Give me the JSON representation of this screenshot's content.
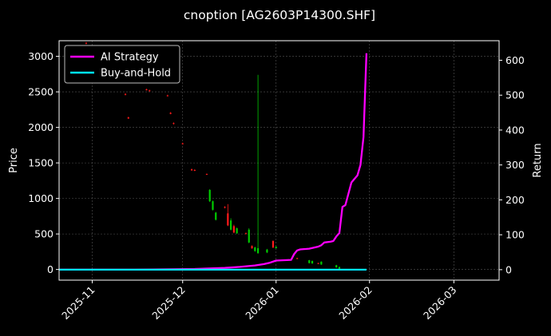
{
  "chart_data": {
    "type": "candlestick+line",
    "title": "cnoption [AG2603P14300.SHF]",
    "ylabel_left": "Price",
    "ylabel_right": "Return",
    "xlim": [
      "2025-10-21",
      "2026-03-16"
    ],
    "ylim_left": [
      -150,
      3220
    ],
    "ylim_right": [
      -30,
      656
    ],
    "x_ticks": [
      {
        "date": "2025-11-01",
        "label": "2025-11"
      },
      {
        "date": "2025-12-01",
        "label": "2025-12"
      },
      {
        "date": "2026-01-01",
        "label": "2026-01"
      },
      {
        "date": "2026-02-01",
        "label": "2026-02"
      },
      {
        "date": "2026-03-01",
        "label": "2026-03"
      }
    ],
    "y_ticks_left": [
      0,
      500,
      1000,
      1500,
      2000,
      2500,
      3000
    ],
    "y_ticks_right": [
      0,
      100,
      200,
      300,
      400,
      500,
      600
    ],
    "grid": true,
    "legend_position": "top-left",
    "colors": {
      "up": "#00cc00",
      "down": "#ff1a1a",
      "ai_strategy": "#ff00ff",
      "buy_and_hold": "#00e5ff",
      "grid": "#555555",
      "background": "#000000"
    },
    "candles": [
      {
        "date": "2025-10-30",
        "open": 3190,
        "close": 3180,
        "high": 3200,
        "low": 3170
      },
      {
        "date": "2025-11-12",
        "open": 2470,
        "close": 2460,
        "high": 2480,
        "low": 2450
      },
      {
        "date": "2025-11-13",
        "open": 2140,
        "close": 2125,
        "high": 2150,
        "low": 2120
      },
      {
        "date": "2025-11-19",
        "open": 2535,
        "close": 2525,
        "high": 2545,
        "low": 2520
      },
      {
        "date": "2025-11-20",
        "open": 2520,
        "close": 2510,
        "high": 2530,
        "low": 2505
      },
      {
        "date": "2025-11-26",
        "open": 2450,
        "close": 2440,
        "high": 2460,
        "low": 2435
      },
      {
        "date": "2025-11-27",
        "open": 2205,
        "close": 2190,
        "high": 2215,
        "low": 2185
      },
      {
        "date": "2025-11-28",
        "open": 2060,
        "close": 2050,
        "high": 2070,
        "low": 2040
      },
      {
        "date": "2025-12-01",
        "open": 1775,
        "close": 1765,
        "high": 1785,
        "low": 1760
      },
      {
        "date": "2025-12-04",
        "open": 1410,
        "close": 1395,
        "high": 1420,
        "low": 1390
      },
      {
        "date": "2025-12-05",
        "open": 1400,
        "close": 1390,
        "high": 1410,
        "low": 1385
      },
      {
        "date": "2025-12-09",
        "open": 1345,
        "close": 1335,
        "high": 1350,
        "low": 1330
      },
      {
        "date": "2025-12-10",
        "open": 960,
        "close": 1120,
        "high": 1130,
        "low": 950
      },
      {
        "date": "2025-12-11",
        "open": 840,
        "close": 960,
        "high": 970,
        "low": 830
      },
      {
        "date": "2025-12-12",
        "open": 700,
        "close": 800,
        "high": 810,
        "low": 690
      },
      {
        "date": "2025-12-15",
        "open": 880,
        "close": 870,
        "high": 890,
        "low": 860
      },
      {
        "date": "2025-12-16",
        "open": 790,
        "close": 620,
        "high": 920,
        "low": 610
      },
      {
        "date": "2025-12-17",
        "open": 560,
        "close": 690,
        "high": 720,
        "low": 550
      },
      {
        "date": "2025-12-18",
        "open": 610,
        "close": 520,
        "high": 630,
        "low": 510
      },
      {
        "date": "2025-12-19",
        "open": 510,
        "close": 580,
        "high": 590,
        "low": 500
      },
      {
        "date": "2025-12-22",
        "open": 510,
        "close": 500,
        "high": 520,
        "low": 495
      },
      {
        "date": "2025-12-23",
        "open": 380,
        "close": 560,
        "high": 580,
        "low": 370
      },
      {
        "date": "2025-12-24",
        "open": 330,
        "close": 300,
        "high": 340,
        "low": 290
      },
      {
        "date": "2025-12-25",
        "open": 260,
        "close": 310,
        "high": 320,
        "low": 250
      },
      {
        "date": "2025-12-26",
        "open": 230,
        "close": 300,
        "high": 2740,
        "low": 220
      },
      {
        "date": "2025-12-29",
        "open": 240,
        "close": 280,
        "high": 290,
        "low": 230
      },
      {
        "date": "2025-12-31",
        "open": 400,
        "close": 310,
        "high": 410,
        "low": 300
      },
      {
        "date": "2026-01-01",
        "open": 300,
        "close": 320,
        "high": 325,
        "low": 295
      },
      {
        "date": "2026-01-08",
        "open": 160,
        "close": 150,
        "high": 165,
        "low": 145
      },
      {
        "date": "2026-01-12",
        "open": 90,
        "close": 130,
        "high": 135,
        "low": 85
      },
      {
        "date": "2026-01-13",
        "open": 85,
        "close": 120,
        "high": 125,
        "low": 80
      },
      {
        "date": "2026-01-15",
        "open": 90,
        "close": 80,
        "high": 95,
        "low": 75
      },
      {
        "date": "2026-01-16",
        "open": 70,
        "close": 110,
        "high": 115,
        "low": 65
      },
      {
        "date": "2026-01-21",
        "open": 30,
        "close": 60,
        "high": 65,
        "low": 25
      },
      {
        "date": "2026-01-22",
        "open": 10,
        "close": 35,
        "high": 40,
        "low": 5
      }
    ],
    "series": [
      {
        "name": "AI Strategy",
        "axis": "right",
        "x": [
          "2025-10-21",
          "2025-11-15",
          "2025-12-05",
          "2025-12-15",
          "2025-12-20",
          "2025-12-25",
          "2025-12-28",
          "2025-12-30",
          "2026-01-01",
          "2026-01-06",
          "2026-01-07",
          "2026-01-08",
          "2026-01-09",
          "2026-01-12",
          "2026-01-15",
          "2026-01-16",
          "2026-01-17",
          "2026-01-19",
          "2026-01-20",
          "2026-01-21",
          "2026-01-22",
          "2026-01-23",
          "2026-01-24",
          "2026-01-26",
          "2026-01-28",
          "2026-01-29",
          "2026-01-30",
          "2026-01-31"
        ],
        "y": [
          0,
          0,
          2,
          5,
          8,
          12,
          16,
          20,
          26,
          28,
          45,
          55,
          58,
          60,
          66,
          70,
          78,
          80,
          82,
          95,
          105,
          180,
          185,
          250,
          270,
          300,
          380,
          620
        ]
      },
      {
        "name": "Buy-and-Hold",
        "axis": "right",
        "x": [
          "2025-10-21",
          "2026-01-31"
        ],
        "y": [
          0,
          0
        ]
      }
    ]
  }
}
